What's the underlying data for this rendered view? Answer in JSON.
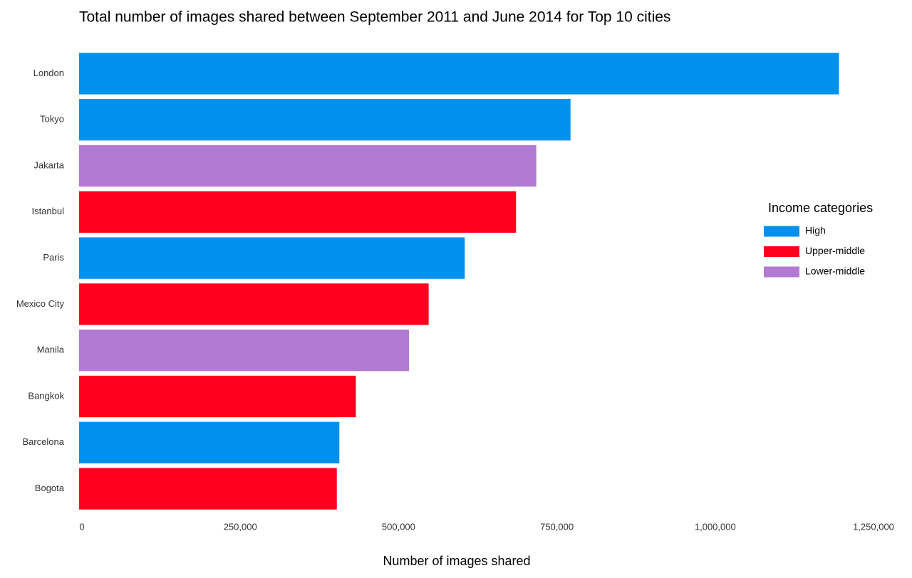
{
  "chart_data": {
    "type": "barh",
    "title": "Total number of images shared between September 2011 and June 2014 for Top 10 cities",
    "x_label": "Number of images shared",
    "legend_title": "Income categories",
    "categories": [
      "London",
      "Tokyo",
      "Jakarta",
      "Istanbul",
      "Paris",
      "Mexico City",
      "Manila",
      "Bangkok",
      "Barcelona",
      "Bogota"
    ],
    "series": [
      {
        "name": "High",
        "color": "#0090ee",
        "values": [
          1200000,
          776000,
          null,
          null,
          609000,
          null,
          null,
          null,
          411000,
          null
        ]
      },
      {
        "name": "Upper-middle",
        "color": "#ff001e",
        "values": [
          null,
          null,
          null,
          690000,
          null,
          552000,
          null,
          437000,
          null,
          407000
        ]
      },
      {
        "name": "Lower-middle",
        "color": "#b37ad4",
        "values": [
          null,
          null,
          722000,
          null,
          null,
          null,
          521000,
          null,
          null,
          null
        ]
      }
    ],
    "xlim": [
      0,
      1250000
    ],
    "xticks": [
      0,
      {
        "value": 250000,
        "label": "250,000"
      },
      {
        "value": 500000,
        "label": "500,000"
      },
      {
        "value": 750000,
        "label": "750,000"
      },
      {
        "value": 1000000,
        "label": "1,000,000"
      },
      {
        "value": 1250000,
        "label": "1,250,000"
      }
    ],
    "grid": false,
    "legend_position": "right"
  }
}
